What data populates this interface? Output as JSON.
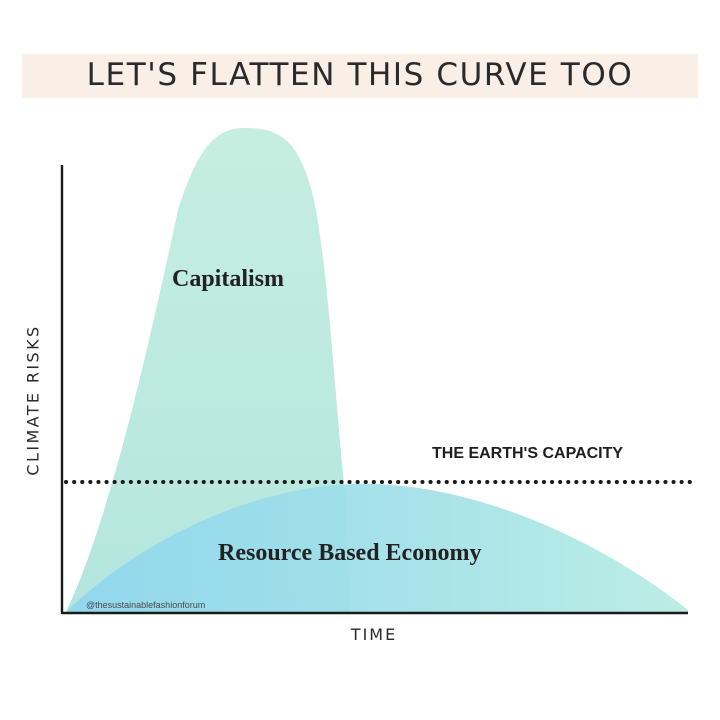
{
  "header": {
    "title": "LET'S FLATTEN THIS CURVE TOO"
  },
  "diagram": {
    "curves": {
      "capitalism": {
        "label": "Capitalism",
        "fill": "#c7ede1"
      },
      "resource_based_economy": {
        "label": "Resource Based Economy",
        "fill": "#a8e3ea"
      }
    },
    "threshold": {
      "label": "THE EARTH'S CAPACITY"
    },
    "axes": {
      "ylabel": "CLIMATE RISKS",
      "xlabel": "TIME"
    },
    "watermark": "@thesustainablefashionforum"
  },
  "colors": {
    "background": "#ffffff",
    "title_banner": "#f9efe6",
    "axis": "#1a1a1a"
  }
}
